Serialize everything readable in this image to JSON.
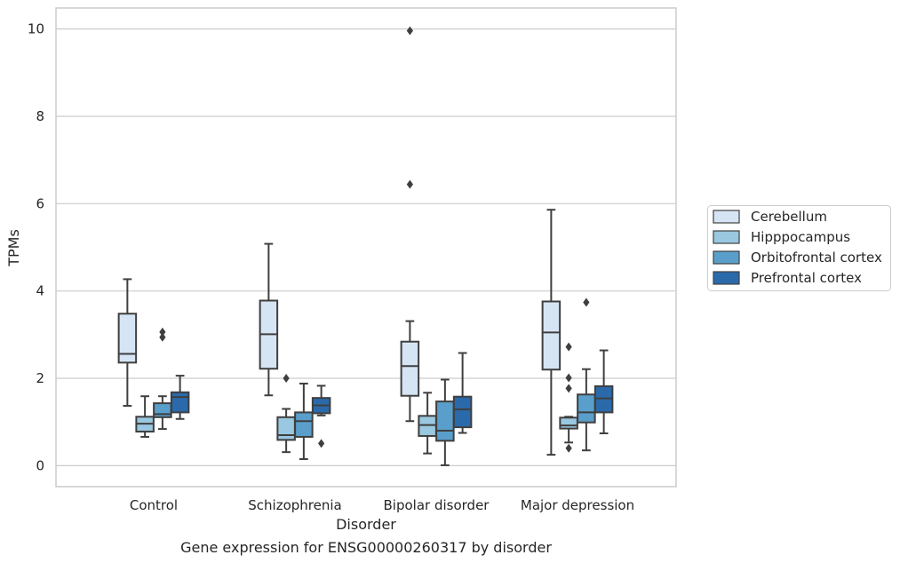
{
  "chart_data": {
    "type": "box",
    "title": "",
    "caption": "Gene expression for ENSG00000260317 by disorder",
    "xlabel": "Disorder",
    "ylabel": "TPMs",
    "ylim": [
      -0.48,
      10.48
    ],
    "yticks": [
      0,
      2,
      4,
      6,
      8,
      10
    ],
    "grid": true,
    "legend_position": "right",
    "categories": [
      "Control",
      "Schizophrenia",
      "Bipolar disorder",
      "Major depression"
    ],
    "series": [
      {
        "name": "Cerebellum",
        "color": "#d6e5f4",
        "boxes": [
          {
            "whislo": 1.37,
            "q1": 2.36,
            "med": 2.56,
            "q3": 3.48,
            "whishi": 4.27,
            "fliers": []
          },
          {
            "whislo": 1.61,
            "q1": 2.22,
            "med": 3.01,
            "q3": 3.78,
            "whishi": 5.08,
            "fliers": []
          },
          {
            "whislo": 1.02,
            "q1": 1.6,
            "med": 2.28,
            "q3": 2.84,
            "whishi": 3.31,
            "fliers": [
              6.44,
              9.96
            ]
          },
          {
            "whislo": 0.25,
            "q1": 2.2,
            "med": 3.05,
            "q3": 3.76,
            "whishi": 5.86,
            "fliers": []
          }
        ]
      },
      {
        "name": "Hipppocampus",
        "color": "#9ac8e0",
        "boxes": [
          {
            "whislo": 0.66,
            "q1": 0.78,
            "med": 0.96,
            "q3": 1.12,
            "whishi": 1.59,
            "fliers": []
          },
          {
            "whislo": 0.31,
            "q1": 0.59,
            "med": 0.7,
            "q3": 1.11,
            "whishi": 1.3,
            "fliers": [
              2.0
            ]
          },
          {
            "whislo": 0.28,
            "q1": 0.68,
            "med": 0.93,
            "q3": 1.14,
            "whishi": 1.67,
            "fliers": []
          },
          {
            "whislo": 0.53,
            "q1": 0.85,
            "med": 0.92,
            "q3": 1.1,
            "whishi": 1.12,
            "fliers": [
              0.4,
              1.77,
              2.01,
              2.72
            ]
          }
        ]
      },
      {
        "name": "Orbitofrontal cortex",
        "color": "#5a9fcb",
        "boxes": [
          {
            "whislo": 0.84,
            "q1": 1.11,
            "med": 1.18,
            "q3": 1.43,
            "whishi": 1.59,
            "fliers": [
              2.94,
              3.06
            ]
          },
          {
            "whislo": 0.15,
            "q1": 0.66,
            "med": 1.02,
            "q3": 1.22,
            "whishi": 1.88,
            "fliers": []
          },
          {
            "whislo": 0.01,
            "q1": 0.57,
            "med": 0.8,
            "q3": 1.47,
            "whishi": 1.97,
            "fliers": []
          },
          {
            "whislo": 0.35,
            "q1": 0.99,
            "med": 1.22,
            "q3": 1.63,
            "whishi": 2.21,
            "fliers": [
              3.74
            ]
          }
        ]
      },
      {
        "name": "Prefrontal cortex",
        "color": "#2a6aab",
        "boxes": [
          {
            "whislo": 1.07,
            "q1": 1.22,
            "med": 1.57,
            "q3": 1.68,
            "whishi": 2.06,
            "fliers": []
          },
          {
            "whislo": 1.15,
            "q1": 1.2,
            "med": 1.38,
            "q3": 1.55,
            "whishi": 1.83,
            "fliers": [
              0.51
            ]
          },
          {
            "whislo": 0.75,
            "q1": 0.88,
            "med": 1.29,
            "q3": 1.58,
            "whishi": 2.58,
            "fliers": []
          },
          {
            "whislo": 0.74,
            "q1": 1.22,
            "med": 1.54,
            "q3": 1.82,
            "whishi": 2.64,
            "fliers": []
          }
        ]
      }
    ]
  }
}
